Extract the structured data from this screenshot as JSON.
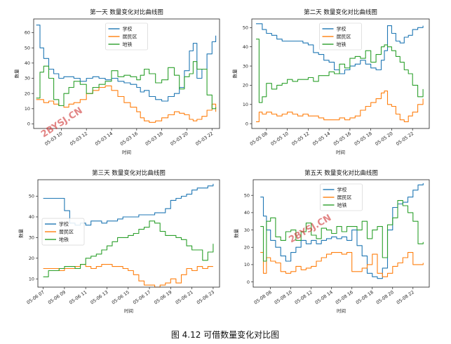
{
  "caption": "图 4.12  可借数量变化对比图",
  "watermark": "2BYSJ.CN",
  "colors": {
    "school": "#1f77b4",
    "residential": "#ff7f0e",
    "subway": "#2ca02c"
  },
  "chart_data": [
    {
      "type": "line",
      "title": "第一天  数量变化对比曲线图",
      "xlabel": "时间",
      "ylabel": "数量",
      "x_ticks": [
        "05-03 10",
        "05-03 12",
        "05-03 14",
        "05-03 16",
        "05-03 18",
        "05-03 20",
        "05-03 22"
      ],
      "xlim": [
        7.8,
        22.6
      ],
      "ylim": [
        -3,
        69
      ],
      "y_ticks": [
        0,
        10,
        20,
        30,
        40,
        50,
        60
      ],
      "legend": "top-center",
      "series": [
        {
          "name": "学校",
          "color": "#1f77b4",
          "x": [
            8.0,
            8.3,
            8.6,
            9.0,
            9.4,
            9.8,
            10.2,
            10.6,
            11.0,
            11.5,
            12.0,
            12.5,
            13.0,
            13.5,
            14.0,
            14.5,
            15.0,
            15.5,
            16.0,
            16.3,
            16.6,
            17.0,
            17.5,
            18.0,
            18.5,
            19.0,
            19.4,
            19.8,
            20.2,
            20.5,
            20.8,
            21.2,
            21.6,
            22.0,
            22.3
          ],
          "y": [
            65,
            50,
            43,
            36,
            33,
            30,
            31,
            31,
            30,
            28,
            30,
            31,
            30,
            29,
            30,
            28,
            27,
            26,
            24,
            21,
            22,
            18,
            16,
            15,
            18,
            20,
            24,
            35,
            48,
            53,
            30,
            36,
            46,
            54,
            58
          ]
        },
        {
          "name": "居民区",
          "color": "#ff7f0e",
          "x": [
            8.0,
            8.3,
            8.6,
            9.0,
            9.4,
            9.8,
            10.2,
            10.6,
            11.0,
            11.5,
            12.0,
            12.5,
            13.0,
            13.5,
            14.0,
            14.5,
            15.0,
            15.5,
            16.0,
            16.3,
            16.6,
            17.0,
            17.5,
            18.0,
            18.5,
            19.0,
            19.4,
            19.8,
            20.2,
            20.5,
            20.8,
            21.2,
            21.6,
            22.0,
            22.3
          ],
          "y": [
            16,
            16,
            14,
            15,
            13,
            12,
            11,
            13,
            14,
            16,
            20,
            22,
            24,
            25,
            22,
            18,
            14,
            11,
            8,
            4,
            2,
            1,
            2,
            4,
            6,
            8,
            7,
            6,
            3,
            2,
            3,
            5,
            9,
            13,
            8
          ]
        },
        {
          "name": "地铁",
          "color": "#2ca02c",
          "x": [
            8.0,
            8.3,
            8.6,
            9.0,
            9.4,
            9.8,
            10.2,
            10.6,
            11.0,
            11.5,
            12.0,
            12.5,
            13.0,
            13.5,
            14.0,
            14.5,
            15.0,
            15.5,
            16.0,
            16.3,
            16.6,
            17.0,
            17.5,
            18.0,
            18.5,
            19.0,
            19.4,
            19.8,
            20.2,
            20.5,
            20.8,
            21.2,
            21.6,
            22.0,
            22.3
          ],
          "y": [
            17,
            34,
            38,
            30,
            16,
            12,
            20,
            24,
            28,
            26,
            20,
            24,
            26,
            28,
            35,
            31,
            32,
            31,
            29,
            32,
            36,
            33,
            27,
            29,
            37,
            32,
            23,
            31,
            33,
            41,
            36,
            36,
            19,
            10,
            11
          ]
        }
      ]
    },
    {
      "type": "line",
      "title": "第二天  数量变化对比曲线图",
      "xlabel": "时间",
      "ylabel": "数量",
      "x_ticks": [
        "05-05 08",
        "05-05 10",
        "05-05 12",
        "05-05 14",
        "05-05 16",
        "05-05 18",
        "05-05 20",
        "05-05 22"
      ],
      "xlim": [
        6.6,
        23.6
      ],
      "ylim": [
        -2.5,
        54.5
      ],
      "y_ticks": [
        0,
        10,
        20,
        30,
        40,
        50
      ],
      "legend": "top-center",
      "series": [
        {
          "name": "学校",
          "color": "#1f77b4",
          "x": [
            7.0,
            7.3,
            7.6,
            8.0,
            8.5,
            9.0,
            9.5,
            10.0,
            10.5,
            11.0,
            11.5,
            12.0,
            12.5,
            13.0,
            13.5,
            14.0,
            14.5,
            15.0,
            15.5,
            16.0,
            16.5,
            17.0,
            17.5,
            18.0,
            18.5,
            19.0,
            19.3,
            19.6,
            20.0,
            20.4,
            20.8,
            21.2,
            21.6,
            22.0,
            22.5,
            23.0
          ],
          "y": [
            52,
            52,
            49,
            47,
            46,
            44,
            43,
            43,
            43,
            43,
            42,
            41,
            37,
            36,
            33,
            32,
            28,
            26,
            28,
            30,
            31,
            33,
            31,
            29,
            28,
            33,
            38,
            51,
            47,
            43,
            42,
            45,
            46,
            49,
            50,
            51
          ]
        },
        {
          "name": "居民区",
          "color": "#ff7f0e",
          "x": [
            7.0,
            7.3,
            7.6,
            8.0,
            8.5,
            9.0,
            9.5,
            10.0,
            10.5,
            11.0,
            11.5,
            12.0,
            12.5,
            13.0,
            13.5,
            14.0,
            14.5,
            15.0,
            15.5,
            16.0,
            16.5,
            17.0,
            17.5,
            18.0,
            18.5,
            19.0,
            19.3,
            19.6,
            20.0,
            20.4,
            20.8,
            21.2,
            21.6,
            22.0,
            22.5,
            23.0
          ],
          "y": [
            1,
            6,
            5,
            6,
            5,
            4,
            5,
            6,
            5,
            4,
            5,
            4,
            4,
            3,
            2,
            2,
            2,
            3,
            2,
            3,
            4,
            7,
            9,
            11,
            13,
            16,
            17,
            10,
            9,
            5,
            2,
            1,
            4,
            6,
            10,
            13
          ]
        },
        {
          "name": "地铁",
          "color": "#2ca02c",
          "x": [
            7.0,
            7.3,
            7.6,
            8.0,
            8.5,
            9.0,
            9.5,
            10.0,
            10.5,
            11.0,
            11.5,
            12.0,
            12.5,
            13.0,
            13.5,
            14.0,
            14.5,
            15.0,
            15.5,
            16.0,
            16.5,
            17.0,
            17.5,
            18.0,
            18.5,
            19.0,
            19.3,
            19.6,
            20.0,
            20.4,
            20.8,
            21.2,
            21.6,
            22.0,
            22.5,
            23.0
          ],
          "y": [
            44,
            11,
            14,
            21,
            18,
            20,
            21,
            23,
            22,
            23,
            23,
            24,
            22,
            25,
            25,
            27,
            26,
            31,
            29,
            34,
            35,
            34,
            38,
            32,
            36,
            40,
            41,
            40,
            38,
            35,
            32,
            28,
            26,
            20,
            14,
            18
          ]
        }
      ]
    },
    {
      "type": "line",
      "title": "第三天  数量变化对比曲线图",
      "xlabel": "时间",
      "ylabel": "数量",
      "x_ticks": [
        "05-06 07",
        "05-06 09",
        "05-06 11",
        "05-06 13",
        "05-06 15",
        "05-06 17",
        "05-06 19",
        "05-06 21",
        "05-06 23"
      ],
      "xlim": [
        6.5,
        23.6
      ],
      "ylim": [
        6,
        58
      ],
      "y_ticks": [
        10,
        20,
        30,
        40,
        50
      ],
      "legend": "middle-left",
      "series": [
        {
          "name": "学校",
          "color": "#1f77b4",
          "x": [
            7.0,
            7.5,
            8.0,
            8.5,
            9.0,
            9.5,
            10.0,
            10.5,
            11.0,
            11.5,
            12.0,
            12.5,
            13.0,
            13.5,
            14.0,
            14.5,
            15.0,
            15.5,
            16.0,
            16.5,
            17.0,
            17.5,
            18.0,
            18.5,
            19.0,
            19.5,
            20.0,
            20.5,
            21.0,
            21.5,
            22.0,
            22.5,
            23.0
          ],
          "y": [
            49,
            49,
            49,
            49,
            43,
            37,
            36,
            37,
            36,
            38,
            38,
            37,
            38,
            38,
            39,
            40,
            40,
            40,
            41,
            41,
            41,
            42,
            42,
            44,
            48,
            49,
            50,
            51,
            53,
            54,
            54,
            55,
            56
          ]
        },
        {
          "name": "居民区",
          "color": "#ff7f0e",
          "x": [
            7.0,
            7.5,
            8.0,
            8.5,
            9.0,
            9.5,
            10.0,
            10.5,
            11.0,
            11.5,
            12.0,
            12.5,
            13.0,
            13.5,
            14.0,
            14.5,
            15.0,
            15.5,
            16.0,
            16.5,
            17.0,
            17.5,
            18.0,
            18.5,
            19.0,
            19.5,
            20.0,
            20.5,
            21.0,
            21.5,
            22.0,
            22.5,
            23.0
          ],
          "y": [
            15,
            15,
            15,
            14,
            15,
            15,
            16,
            17,
            16,
            15,
            16,
            17,
            17,
            16,
            16,
            15,
            14,
            12,
            9,
            7,
            7,
            6,
            7,
            8,
            10,
            8,
            12,
            15,
            14,
            16,
            15,
            16,
            16
          ]
        },
        {
          "name": "地铁",
          "color": "#2ca02c",
          "x": [
            7.0,
            7.5,
            8.0,
            8.5,
            9.0,
            9.5,
            10.0,
            10.5,
            11.0,
            11.5,
            12.0,
            12.5,
            13.0,
            13.5,
            14.0,
            14.5,
            15.0,
            15.5,
            16.0,
            16.5,
            17.0,
            17.5,
            18.0,
            18.5,
            19.0,
            19.5,
            20.0,
            20.5,
            21.0,
            21.5,
            22.0,
            22.5,
            23.0
          ],
          "y": [
            11,
            14,
            14,
            15,
            16,
            16,
            15,
            17,
            20,
            21,
            22,
            24,
            26,
            28,
            30,
            30,
            31,
            32,
            34,
            35,
            38,
            37,
            33,
            31,
            31,
            30,
            29,
            26,
            24,
            24,
            19,
            23,
            27
          ]
        }
      ]
    },
    {
      "type": "line",
      "title": "第五天  数量变化对比曲线图",
      "xlabel": "时间",
      "ylabel": "数量",
      "x_ticks": [
        "05-08 08",
        "05-08 10",
        "05-08 12",
        "05-08 14",
        "05-08 16",
        "05-08 18",
        "05-08 20",
        "05-08 22"
      ],
      "xlim": [
        6.3,
        23.6
      ],
      "ylim": [
        -3,
        59
      ],
      "y_ticks": [
        0,
        10,
        20,
        30,
        40,
        50
      ],
      "legend": "top-center",
      "series": [
        {
          "name": "学校",
          "color": "#1f77b4",
          "x": [
            7.0,
            7.3,
            7.6,
            8.0,
            8.5,
            9.0,
            9.5,
            10.0,
            10.5,
            11.0,
            11.5,
            12.0,
            12.5,
            13.0,
            13.5,
            14.0,
            14.5,
            15.0,
            15.5,
            16.0,
            16.5,
            17.0,
            17.5,
            18.0,
            18.5,
            19.0,
            19.5,
            20.0,
            20.5,
            21.0,
            21.5,
            22.0,
            22.5,
            23.0
          ],
          "y": [
            49,
            38,
            30,
            24,
            20,
            15,
            12,
            17,
            20,
            24,
            22,
            24,
            22,
            24,
            25,
            26,
            25,
            26,
            24,
            30,
            21,
            15,
            5,
            3,
            2,
            8,
            30,
            43,
            45,
            46,
            49,
            53,
            56,
            57
          ]
        },
        {
          "name": "居民区",
          "color": "#ff7f0e",
          "x": [
            7.0,
            7.3,
            7.6,
            8.0,
            8.5,
            9.0,
            9.5,
            10.0,
            10.5,
            11.0,
            11.5,
            12.0,
            12.5,
            13.0,
            13.5,
            14.0,
            14.5,
            15.0,
            15.5,
            16.0,
            16.5,
            17.0,
            17.5,
            18.0,
            18.5,
            19.0,
            19.5,
            20.0,
            20.5,
            21.0,
            21.5,
            22.0,
            22.5,
            23.0
          ],
          "y": [
            17,
            5,
            14,
            12,
            11,
            6,
            5,
            6,
            9,
            7,
            8,
            9,
            12,
            14,
            16,
            17,
            17,
            16,
            17,
            6,
            6,
            8,
            10,
            16,
            5,
            3,
            5,
            9,
            11,
            14,
            17,
            10,
            10,
            11
          ]
        },
        {
          "name": "地铁",
          "color": "#2ca02c",
          "x": [
            7.0,
            7.3,
            7.6,
            8.0,
            8.5,
            9.0,
            9.5,
            10.0,
            10.5,
            11.0,
            11.5,
            12.0,
            12.5,
            13.0,
            13.5,
            14.0,
            14.5,
            15.0,
            15.5,
            16.0,
            16.5,
            17.0,
            17.5,
            18.0,
            18.5,
            19.0,
            19.5,
            20.0,
            20.5,
            21.0,
            21.5,
            22.0,
            22.5,
            23.0
          ],
          "y": [
            32,
            12,
            35,
            37,
            26,
            24,
            29,
            30,
            24,
            29,
            34,
            27,
            25,
            31,
            30,
            28,
            32,
            29,
            32,
            32,
            30,
            35,
            25,
            30,
            32,
            14,
            33,
            37,
            47,
            44,
            40,
            35,
            22,
            23
          ]
        }
      ]
    }
  ]
}
